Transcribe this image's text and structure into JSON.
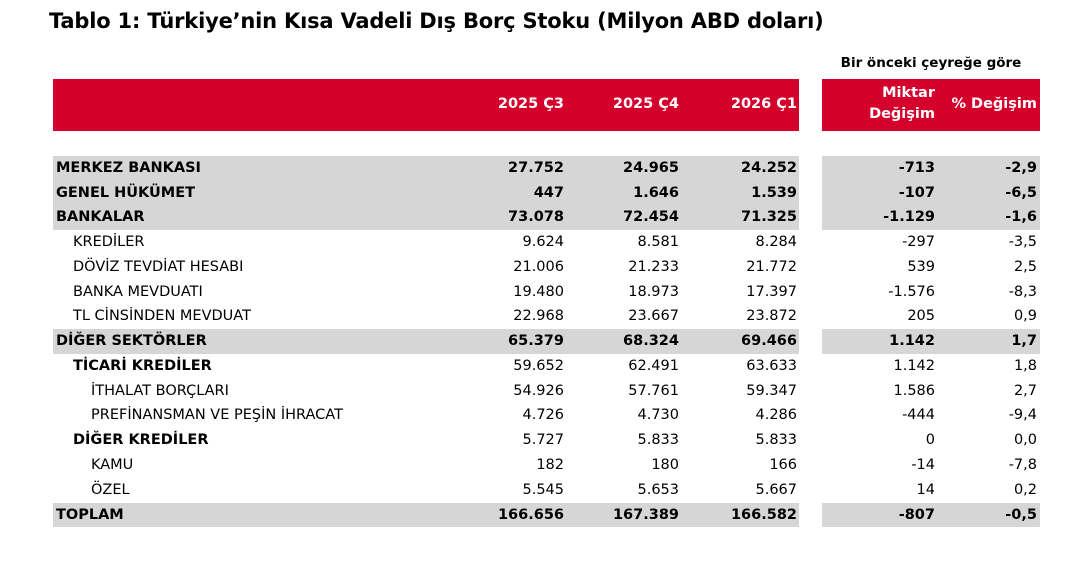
{
  "title": "Tablo 1: Türkiye’nin Kısa Vadeli Dış Borç Stoku (Milyon ABD doları)",
  "compare_note": "Bir önceki çeyreğe göre",
  "header": {
    "col1": "2025 Ç3",
    "col2": "2025 Ç4",
    "col3": "2026 Ç1",
    "change_line1": "Miktar",
    "change_line2": "Değişim",
    "pct_change": "% Değişim"
  },
  "rows": [
    {
      "label": "MERKEZ BANKASI",
      "v1": "27.752",
      "v2": "24.965",
      "v3": "24.252",
      "chg": "-713",
      "pct": "-2,9"
    },
    {
      "label": "GENEL HÜKÜMET",
      "v1": "447",
      "v2": "1.646",
      "v3": "1.539",
      "chg": "-107",
      "pct": "-6,5"
    },
    {
      "label": "BANKALAR",
      "v1": "73.078",
      "v2": "72.454",
      "v3": "71.325",
      "chg": "-1.129",
      "pct": "-1,6"
    },
    {
      "label": "KREDİLER",
      "v1": "9.624",
      "v2": "8.581",
      "v3": "8.284",
      "chg": "-297",
      "pct": "-3,5"
    },
    {
      "label": "DÖVİZ TEVDİAT HESABI",
      "v1": "21.006",
      "v2": "21.233",
      "v3": "21.772",
      "chg": "539",
      "pct": "2,5"
    },
    {
      "label": "BANKA MEVDUATI",
      "v1": "19.480",
      "v2": "18.973",
      "v3": "17.397",
      "chg": "-1.576",
      "pct": "-8,3"
    },
    {
      "label": "TL CİNSİNDEN MEVDUAT",
      "v1": "22.968",
      "v2": "23.667",
      "v3": "23.872",
      "chg": "205",
      "pct": "0,9"
    },
    {
      "label": "DİĞER SEKTÖRLER",
      "v1": "65.379",
      "v2": "68.324",
      "v3": "69.466",
      "chg": "1.142",
      "pct": "1,7"
    },
    {
      "label": "TİCARİ KREDİLER",
      "v1": "59.652",
      "v2": "62.491",
      "v3": "63.633",
      "chg": "1.142",
      "pct": "1,8"
    },
    {
      "label": "İTHALAT BORÇLARI",
      "v1": "54.926",
      "v2": "57.761",
      "v3": "59.347",
      "chg": "1.586",
      "pct": "2,7"
    },
    {
      "label": "PREFİNANSMAN VE PEŞİN İHRACAT",
      "v1": "4.726",
      "v2": "4.730",
      "v3": "4.286",
      "chg": "-444",
      "pct": "-9,4"
    },
    {
      "label": "DİĞER KREDİLER",
      "v1": "5.727",
      "v2": "5.833",
      "v3": "5.833",
      "chg": "0",
      "pct": "0,0"
    },
    {
      "label": "KAMU",
      "v1": "182",
      "v2": "180",
      "v3": "166",
      "chg": "-14",
      "pct": "-7,8"
    },
    {
      "label": "ÖZEL",
      "v1": "5.545",
      "v2": "5.653",
      "v3": "5.667",
      "chg": "14",
      "pct": "0,2"
    },
    {
      "label": "TOPLAM",
      "v1": "166.656",
      "v2": "167.389",
      "v3": "166.582",
      "chg": "-807",
      "pct": "-0,5"
    }
  ],
  "colors": {
    "header_bg": "#d4002b",
    "header_text": "#ffffff",
    "band_bg": "#d6d6d6"
  }
}
